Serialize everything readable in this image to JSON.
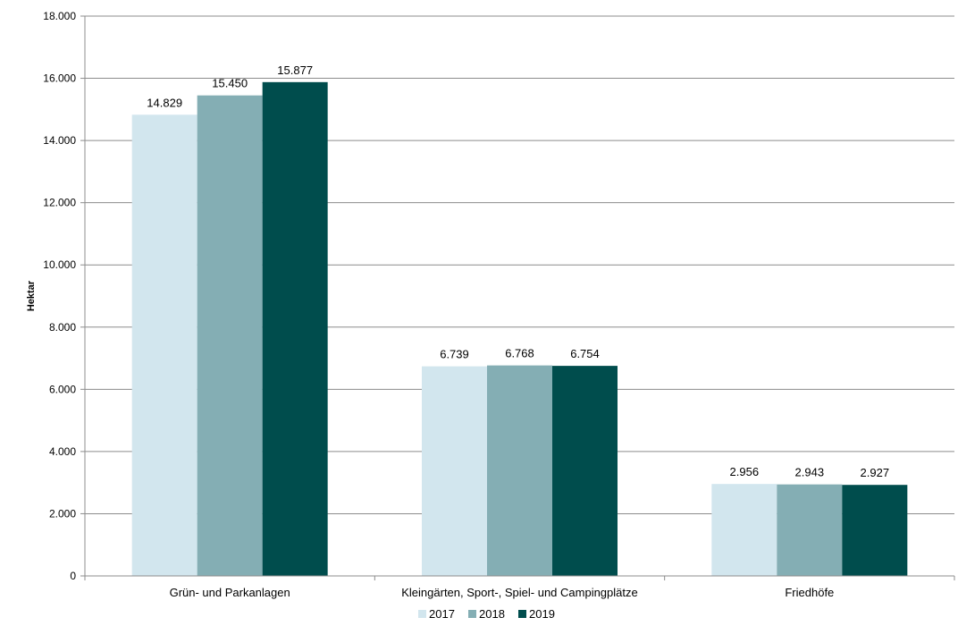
{
  "chart_data": {
    "type": "bar",
    "categories": [
      "Grün- und Parkanlagen",
      "Kleingärten, Sport-, Spiel- und Campingplätze",
      "Friedhöfe"
    ],
    "series": [
      {
        "name": "2017",
        "values": [
          14829,
          6739,
          2956
        ],
        "labels": [
          "14.829",
          "6.739",
          "2.956"
        ],
        "color": "#d2e6ee"
      },
      {
        "name": "2018",
        "values": [
          15450,
          6768,
          2943
        ],
        "labels": [
          "15.450",
          "6.768",
          "2.943"
        ],
        "color": "#84aeb4"
      },
      {
        "name": "2019",
        "values": [
          15877,
          6754,
          2927
        ],
        "labels": [
          "15.877",
          "6.754",
          "2.927"
        ],
        "color": "#004d4d"
      }
    ],
    "ylabel": "Hektar",
    "ylim": [
      0,
      18000
    ],
    "yticks": [
      0,
      2000,
      4000,
      6000,
      8000,
      10000,
      12000,
      14000,
      16000,
      18000
    ],
    "ytick_labels": [
      "0",
      "2.000",
      "4.000",
      "6.000",
      "8.000",
      "10.000",
      "12.000",
      "14.000",
      "16.000",
      "18.000"
    ],
    "grid": true,
    "legend_position": "bottom"
  }
}
